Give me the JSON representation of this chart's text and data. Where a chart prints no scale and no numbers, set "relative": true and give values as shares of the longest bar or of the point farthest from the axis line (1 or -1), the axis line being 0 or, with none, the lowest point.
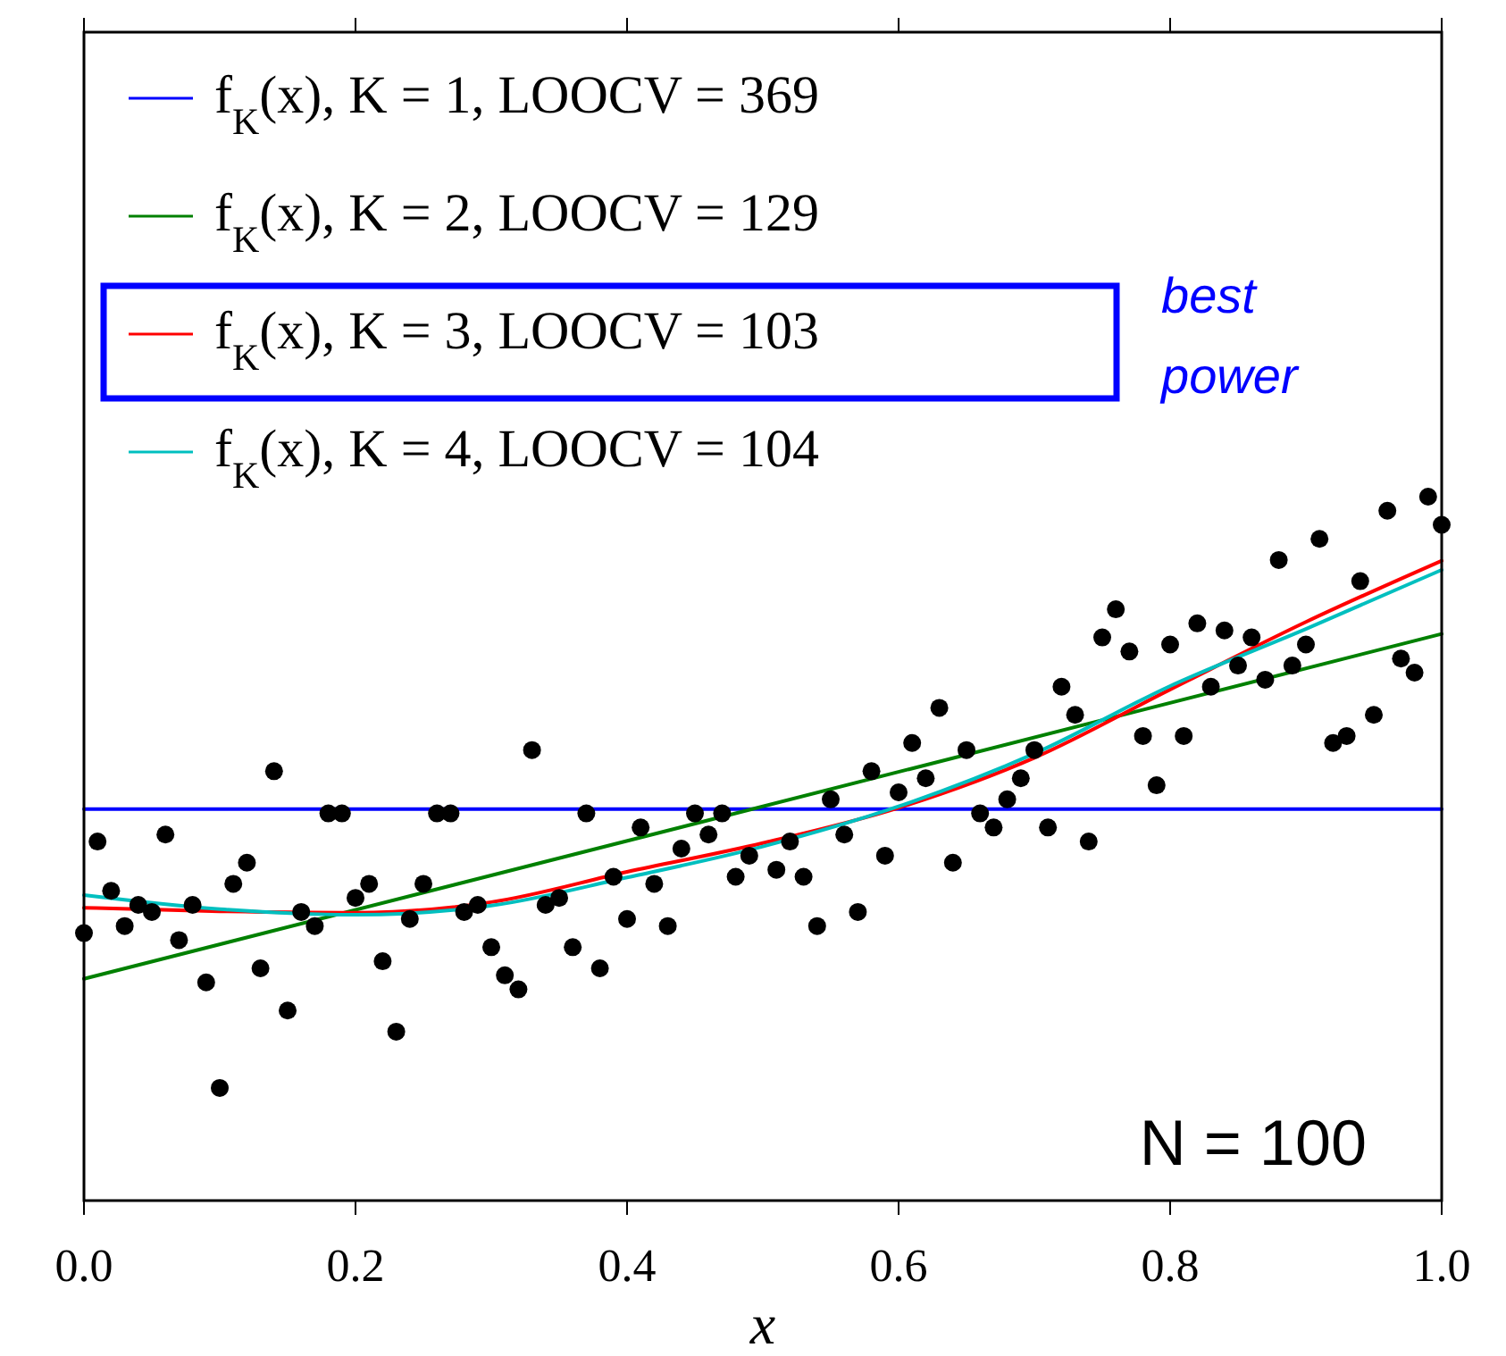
{
  "chart_data": {
    "type": "line",
    "relative": true,
    "xlabel": "x",
    "legend": "top left",
    "xlim": [
      0,
      1
    ],
    "xticks": [
      {
        "value": 0,
        "label": "0.0"
      },
      {
        "value": 0.2,
        "label": "0.2"
      },
      {
        "value": 0.4,
        "label": "0.4"
      },
      {
        "value": 0.6,
        "label": "0.6"
      },
      {
        "value": 0.8,
        "label": "0.8"
      },
      {
        "value": 1,
        "label": "1.0"
      }
    ],
    "annotations": [
      "best power",
      "N = 100"
    ],
    "series": [
      {
        "type": "scatter",
        "marker": "circle",
        "color": "#000000",
        "x": [
          0,
          0.01,
          0.02,
          0.03,
          0.04,
          0.05,
          0.06,
          0.07,
          0.08,
          0.09,
          0.1,
          0.11,
          0.12,
          0.13,
          0.14,
          0.15,
          0.16,
          0.17,
          0.18,
          0.19,
          0.2,
          0.21,
          0.22,
          0.23,
          0.24,
          0.25,
          0.26,
          0.27,
          0.28,
          0.29,
          0.3,
          0.31,
          0.32,
          0.33,
          0.34,
          0.35,
          0.36,
          0.37,
          0.38,
          0.39,
          0.4,
          0.41,
          0.42,
          0.43,
          0.44,
          0.45,
          0.46,
          0.47,
          0.48,
          0.49,
          0.51,
          0.52,
          0.53,
          0.54,
          0.55,
          0.56,
          0.57,
          0.58,
          0.59,
          0.6,
          0.61,
          0.62,
          0.63,
          0.64,
          0.65,
          0.66,
          0.67,
          0.68,
          0.69,
          0.7,
          0.71,
          0.72,
          0.73,
          0.74,
          0.75,
          0.76,
          0.77,
          0.78,
          0.79,
          0.8,
          0.81,
          0.82,
          0.83,
          0.84,
          0.85,
          0.86,
          0.87,
          0.88,
          0.89,
          0.9,
          0.91,
          0.92,
          0.93,
          0.94,
          0.95,
          0.96,
          0.97,
          0.98,
          0.99,
          1
        ],
        "values": [
          0.38,
          0.51,
          0.44,
          0.39,
          0.42,
          0.41,
          0.52,
          0.37,
          0.42,
          0.31,
          0.16,
          0.45,
          0.48,
          0.33,
          0.61,
          0.27,
          0.41,
          0.39,
          0.55,
          0.55,
          0.43,
          0.45,
          0.34,
          0.24,
          0.4,
          0.45,
          0.55,
          0.55,
          0.41,
          0.42,
          0.36,
          0.32,
          0.3,
          0.64,
          0.42,
          0.43,
          0.36,
          0.55,
          0.33,
          0.46,
          0.4,
          0.53,
          0.45,
          0.39,
          0.5,
          0.55,
          0.52,
          0.55,
          0.46,
          0.49,
          0.47,
          0.51,
          0.46,
          0.39,
          0.57,
          0.52,
          0.41,
          0.61,
          0.49,
          0.58,
          0.65,
          0.6,
          0.7,
          0.48,
          0.64,
          0.55,
          0.53,
          0.57,
          0.6,
          0.64,
          0.53,
          0.73,
          0.69,
          0.51,
          0.8,
          0.84,
          0.78,
          0.66,
          0.59,
          0.79,
          0.66,
          0.82,
          0.73,
          0.81,
          0.76,
          0.8,
          0.74,
          0.91,
          0.76,
          0.79,
          0.94,
          0.65,
          0.66,
          0.88,
          0.69,
          0.98,
          0.77,
          0.75,
          1,
          0.96
        ]
      },
      {
        "name": "f$_{K}$(x), K = 1, LOOCV = 369",
        "color": "#0000ff",
        "x": [
          0,
          1
        ],
        "values": [
          0.556,
          0.556
        ]
      },
      {
        "name": "f$_{K}$(x), K = 2, LOOCV = 129",
        "color": "#008000",
        "x": [
          0,
          1
        ],
        "values": [
          0.315,
          0.805
        ]
      },
      {
        "name": "f$_{K}$(x), K = 3, LOOCV = 103",
        "color": "#ff0000",
        "x": [
          0,
          0.1,
          0.2,
          0.3,
          0.4,
          0.5,
          0.6,
          0.7,
          0.8,
          0.9,
          1
        ],
        "values": [
          0.416,
          0.411,
          0.409,
          0.424,
          0.467,
          0.508,
          0.558,
          0.629,
          0.726,
          0.822,
          0.909
        ]
      },
      {
        "name": "f$_{K}$(x), K = 4, LOOCV = 104",
        "color": "#00bfbf",
        "x": [
          0,
          0.1,
          0.2,
          0.3,
          0.4,
          0.5,
          0.6,
          0.7,
          0.8,
          0.9,
          1
        ],
        "values": [
          0.434,
          0.414,
          0.406,
          0.419,
          0.459,
          0.503,
          0.56,
          0.635,
          0.731,
          0.812,
          0.896
        ]
      }
    ]
  }
}
